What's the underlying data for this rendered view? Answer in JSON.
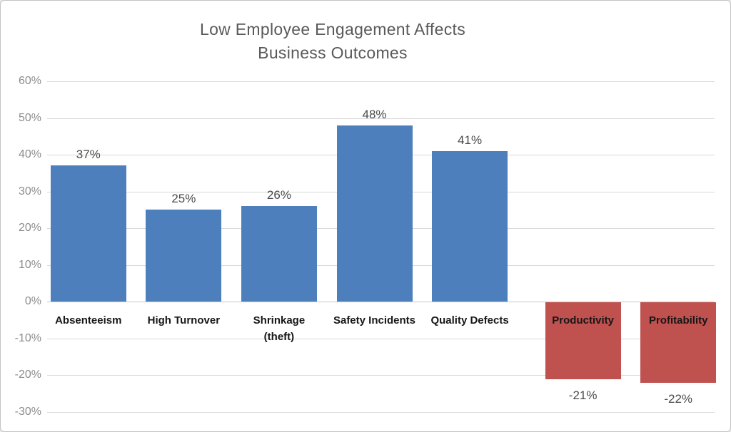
{
  "chart_data": {
    "type": "bar",
    "title": "Low Employee Engagement Affects Business Outcomes",
    "title_lines": [
      "Low Employee Engagement Affects",
      "Business Outcomes"
    ],
    "xlabel": "",
    "ylabel": "",
    "ylim": [
      -30,
      60
    ],
    "grid": true,
    "legend": "none",
    "categories": [
      "Absenteeism",
      "High Turnover",
      "Shrinkage (theft)",
      "Safety Incidents",
      "Quality Defects",
      "Productivity",
      "Profitability"
    ],
    "values": [
      37,
      25,
      26,
      48,
      41,
      -21,
      -22
    ],
    "y_ticks": [
      {
        "label": "60%",
        "value": 60
      },
      {
        "label": "50%",
        "value": 50
      },
      {
        "label": "40%",
        "value": 40
      },
      {
        "label": "30%",
        "value": 30
      },
      {
        "label": "20%",
        "value": 20
      },
      {
        "label": "10%",
        "value": 10
      },
      {
        "label": "0%",
        "value": 0
      },
      {
        "label": "-10%",
        "value": -10
      },
      {
        "label": "-20%",
        "value": -20
      },
      {
        "label": "-30%",
        "value": -30
      }
    ],
    "bars": [
      {
        "category": "Absenteeism",
        "label_lines": [
          "Absenteeism"
        ],
        "value": 37,
        "data_label": "37%",
        "color": "#4d7fbd"
      },
      {
        "category": "High Turnover",
        "label_lines": [
          "High Turnover"
        ],
        "value": 25,
        "data_label": "25%",
        "color": "#4d7fbd"
      },
      {
        "category": "Shrinkage (theft)",
        "label_lines": [
          "Shrinkage",
          "(theft)"
        ],
        "value": 26,
        "data_label": "26%",
        "color": "#4d7fbd"
      },
      {
        "category": "Safety Incidents",
        "label_lines": [
          "Safety Incidents"
        ],
        "value": 48,
        "data_label": "48%",
        "color": "#4d7fbd"
      },
      {
        "category": "Quality Defects",
        "label_lines": [
          "Quality Defects"
        ],
        "value": 41,
        "data_label": "41%",
        "color": "#4d7fbd"
      },
      {
        "category": "Productivity",
        "label_lines": [
          "Productivity"
        ],
        "value": -21,
        "data_label": "-21%",
        "color": "#bf514f"
      },
      {
        "category": "Profitability",
        "label_lines": [
          "Profitability"
        ],
        "value": -22,
        "data_label": "-22%",
        "color": "#bf514f"
      }
    ],
    "colors": {
      "positive_bar": "#4d7fbd",
      "negative_bar": "#bf514f"
    }
  },
  "styles": {
    "background": "#ffffff",
    "border_color": "#c3c3c3",
    "title_color": "#595959",
    "axis_tick_color": "#8c8c8c",
    "data_label_color": "#4a4a4a",
    "category_label_color": "#161616",
    "gridline_color": "#d9d9d9"
  }
}
